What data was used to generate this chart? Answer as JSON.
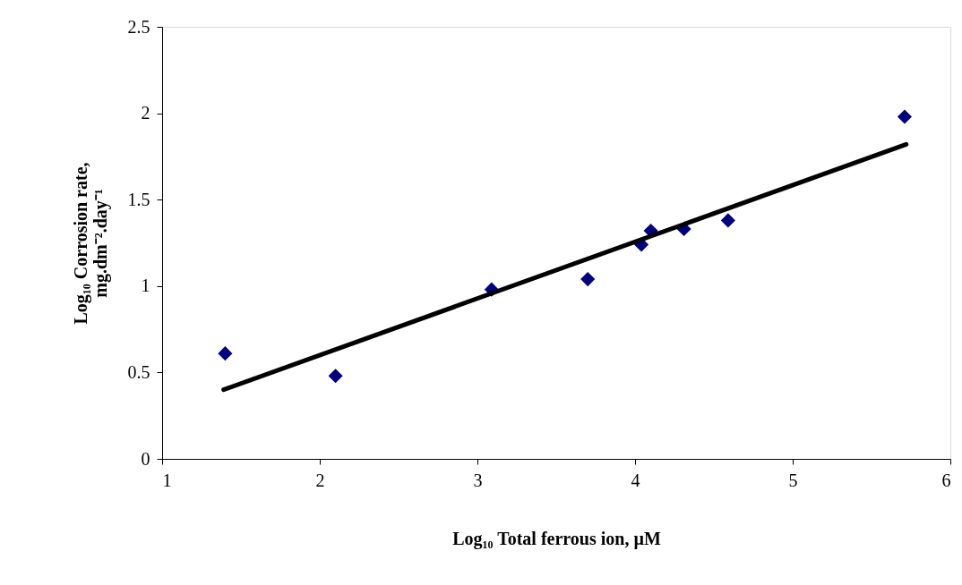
{
  "chart_data": {
    "type": "scatter",
    "xlabel": "Log₁₀ Total ferrous ion, µM",
    "ylabel": "Log₁₀ Corrosion rate, mg.dm⁻².day⁻¹",
    "xlim": [
      1,
      6
    ],
    "xticks": [
      1,
      2,
      3,
      4,
      5,
      6
    ],
    "ylim": [
      0,
      2.5
    ],
    "yticks": [
      0,
      0.5,
      1,
      1.5,
      2,
      2.5
    ],
    "grid": false,
    "series": [
      {
        "marker": "diamond",
        "color": "#000080",
        "x": [
          1.4,
          2.1,
          3.09,
          3.7,
          4.04,
          4.1,
          4.31,
          4.59,
          5.71
        ],
        "values": [
          0.61,
          0.48,
          0.98,
          1.04,
          1.24,
          1.32,
          1.33,
          1.38,
          1.98
        ]
      },
      {
        "type": "line",
        "marker": "none",
        "color": "#000000",
        "line_style": "solid",
        "x": [
          1.39,
          5.72
        ],
        "values": [
          0.4,
          1.82
        ]
      }
    ]
  }
}
